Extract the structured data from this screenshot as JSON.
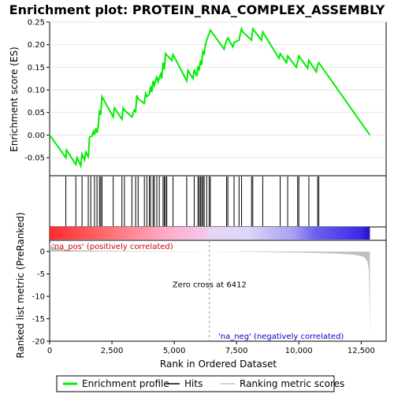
{
  "chart_data": {
    "type": "line",
    "title": "Enrichment plot: PROTEIN_RNA_COMPLEX_ASSEMBLY",
    "top_panel": {
      "ylabel": "Enrichment score (ES)",
      "ylim": [
        -0.09,
        0.25
      ],
      "yticks": [
        -0.05,
        0.0,
        0.05,
        0.1,
        0.15,
        0.2,
        0.25
      ],
      "ytick_labels": [
        "-0.05",
        "0.00",
        "0.05",
        "0.10",
        "0.15",
        "0.20",
        "0.25"
      ],
      "series": [
        {
          "name": "Enrichment profile",
          "color": "#00ee00",
          "x": [
            0,
            650,
            680,
            1050,
            1100,
            1250,
            1300,
            1400,
            1450,
            1550,
            1600,
            1700,
            1750,
            1800,
            1850,
            1900,
            1950,
            2000,
            2050,
            2100,
            2550,
            2600,
            2900,
            2950,
            3000,
            3300,
            3400,
            3450,
            3500,
            3550,
            3800,
            3850,
            3900,
            4000,
            4050,
            4100,
            4150,
            4200,
            4300,
            4350,
            4450,
            4500,
            4550,
            4600,
            4650,
            4900,
            4950,
            5500,
            5550,
            5750,
            5800,
            5900,
            5950,
            6000,
            6050,
            6100,
            6150,
            6200,
            6250,
            6300,
            6400,
            6450,
            7000,
            7100,
            7150,
            7350,
            7400,
            7600,
            7650,
            7700,
            7750,
            8100,
            8150,
            8500,
            8550,
            9200,
            9250,
            9500,
            9550,
            9900,
            9950,
            10000,
            10350,
            10400,
            10700,
            10750,
            10800,
            12850
          ],
          "y": [
            0.0,
            -0.05,
            -0.033,
            -0.065,
            -0.05,
            -0.068,
            -0.042,
            -0.055,
            -0.038,
            -0.048,
            -0.005,
            -0.002,
            0.008,
            0.0,
            0.015,
            0.005,
            0.02,
            0.055,
            0.045,
            0.085,
            0.04,
            0.06,
            0.035,
            0.06,
            0.055,
            0.04,
            0.055,
            0.052,
            0.088,
            0.08,
            0.07,
            0.092,
            0.085,
            0.09,
            0.108,
            0.095,
            0.12,
            0.11,
            0.13,
            0.118,
            0.135,
            0.125,
            0.16,
            0.145,
            0.18,
            0.165,
            0.178,
            0.12,
            0.143,
            0.125,
            0.145,
            0.13,
            0.15,
            0.145,
            0.165,
            0.155,
            0.185,
            0.18,
            0.2,
            0.21,
            0.225,
            0.232,
            0.19,
            0.21,
            0.215,
            0.195,
            0.205,
            0.21,
            0.225,
            0.235,
            0.228,
            0.21,
            0.235,
            0.21,
            0.228,
            0.17,
            0.18,
            0.16,
            0.175,
            0.15,
            0.162,
            0.175,
            0.148,
            0.165,
            0.14,
            0.155,
            0.16,
            0.0
          ]
        }
      ]
    },
    "hits_panel": {
      "label": "Hits",
      "positions": [
        650,
        1050,
        1300,
        1550,
        1650,
        1800,
        1900,
        2000,
        2050,
        2100,
        2550,
        2900,
        3000,
        3300,
        3450,
        3550,
        3800,
        3900,
        4000,
        4050,
        4150,
        4200,
        4300,
        4400,
        4550,
        4600,
        4650,
        4700,
        4950,
        5500,
        5800,
        5950,
        6000,
        6050,
        6100,
        6150,
        6200,
        6300,
        6400,
        6450,
        7100,
        7150,
        7400,
        7600,
        7700,
        8100,
        8150,
        8550,
        9250,
        9550,
        9950,
        10000,
        10400,
        10750,
        10800
      ]
    },
    "bottom_panel": {
      "ylabel": "Ranked list metric (PreRanked)",
      "xlabel": "Rank in Ordered Dataset",
      "ylim": [
        -20,
        2.5
      ],
      "yticks": [
        0,
        -5,
        -10,
        -15,
        -20
      ],
      "ytick_labels": [
        "0",
        "-5",
        "-10",
        "-15",
        "-20"
      ],
      "series": [
        {
          "name": "Ranking metric scores",
          "color": "#c0c0c0",
          "x": [
            0,
            100,
            300,
            600,
            1000,
            2000,
            4000,
            6412,
            8000,
            10000,
            11500,
            12200,
            12500,
            12650,
            12750,
            12800,
            12830,
            12850
          ],
          "y": [
            1.8,
            1.1,
            0.7,
            0.45,
            0.3,
            0.18,
            0.08,
            0.0,
            -0.1,
            -0.25,
            -0.45,
            -0.7,
            -1.0,
            -1.4,
            -2.2,
            -4.0,
            -10.0,
            -19.5
          ]
        }
      ],
      "zero_cross_label": "Zero cross at 6412",
      "zero_cross": 6412,
      "pos_label": "'na_pos' (positively correlated)",
      "neg_label": "'na_neg' (negatively correlated)",
      "pos_color": "#cc0000",
      "neg_color": "#0000cc"
    },
    "x_axis": {
      "xlim": [
        0,
        13500
      ],
      "xticks": [
        0,
        2500,
        5000,
        7500,
        10000,
        12500
      ],
      "xtick_labels": [
        "0",
        "2,500",
        "5,000",
        "7,500",
        "10,000",
        "12,500"
      ]
    },
    "legend": {
      "placement": "bottom",
      "entries": [
        {
          "name": "Enrichment profile",
          "color": "#00ee00"
        },
        {
          "name": "Hits",
          "color": "#000000"
        },
        {
          "name": "Ranking metric scores",
          "color": "#c0c0c0"
        }
      ]
    },
    "n_genes": 12850
  }
}
